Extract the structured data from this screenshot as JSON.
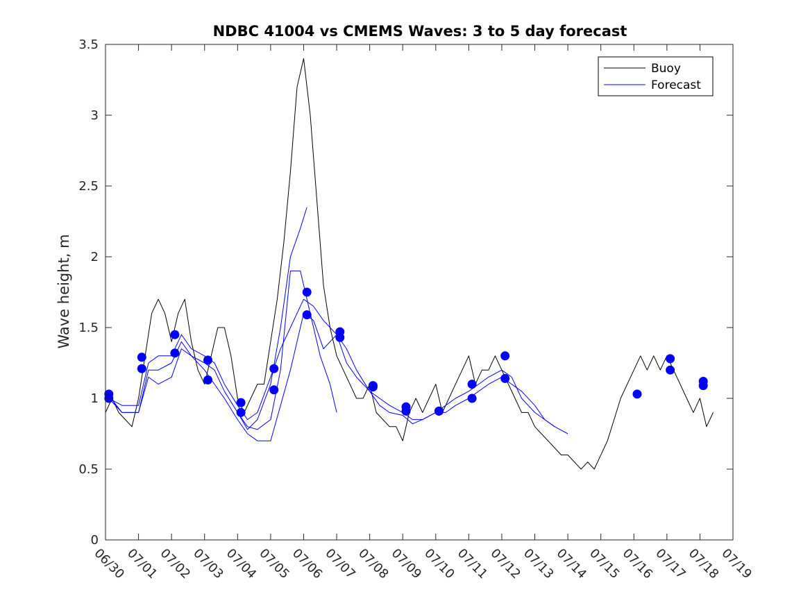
{
  "chart_data": {
    "type": "line",
    "title": "NDBC 41004 vs CMEMS Waves: 3 to 5 day forecast",
    "ylabel": "Wave height, m",
    "xlabel": "",
    "ylim": [
      0,
      3.5
    ],
    "xlim_days": [
      0,
      19
    ],
    "yticks": [
      "0",
      "0.5",
      "1",
      "1.5",
      "2",
      "2.5",
      "3",
      "3.5"
    ],
    "xticks": [
      "06/30",
      "07/01",
      "07/02",
      "07/03",
      "07/04",
      "07/05",
      "07/06",
      "07/07",
      "07/08",
      "07/09",
      "07/10",
      "07/11",
      "07/12",
      "07/13",
      "07/14",
      "07/15",
      "07/16",
      "07/17",
      "07/18",
      "07/19"
    ],
    "legend": {
      "placement": "top-right",
      "entries": [
        {
          "label": "Buoy",
          "color": "#000000"
        },
        {
          "label": "Forecast",
          "color": "#0000ff"
        }
      ]
    },
    "series": [
      {
        "name": "Buoy",
        "color": "#000000",
        "x": [
          0,
          0.2,
          0.4,
          0.6,
          0.8,
          1.0,
          1.2,
          1.4,
          1.6,
          1.8,
          2.0,
          2.2,
          2.4,
          2.6,
          2.8,
          3.0,
          3.2,
          3.4,
          3.6,
          3.8,
          4.0,
          4.2,
          4.4,
          4.6,
          4.8,
          5.0,
          5.2,
          5.4,
          5.6,
          5.8,
          6.0,
          6.2,
          6.4,
          6.6,
          6.8,
          7.0,
          7.2,
          7.4,
          7.6,
          7.8,
          8.0,
          8.2,
          8.4,
          8.6,
          8.8,
          9.0,
          9.2,
          9.4,
          9.6,
          9.8,
          10.0,
          10.2,
          10.4,
          10.6,
          10.8,
          11.0,
          11.2,
          11.4,
          11.6,
          11.8,
          12.0,
          12.2,
          12.4,
          12.6,
          12.8,
          13.0,
          13.2,
          13.4,
          13.6,
          13.8,
          14.0,
          14.2,
          14.4,
          14.6,
          14.8,
          15.0,
          15.2,
          15.4,
          15.6,
          15.8,
          16.0,
          16.2,
          16.4,
          16.6,
          16.8,
          17.0,
          17.2,
          17.4,
          17.6,
          17.8,
          18.0,
          18.2,
          18.4
        ],
        "y": [
          0.9,
          1.0,
          0.9,
          0.85,
          0.8,
          1.0,
          1.3,
          1.6,
          1.7,
          1.6,
          1.4,
          1.6,
          1.7,
          1.4,
          1.2,
          1.1,
          1.3,
          1.5,
          1.5,
          1.3,
          1.0,
          0.9,
          1.0,
          1.1,
          1.1,
          1.4,
          1.7,
          2.1,
          2.6,
          3.2,
          3.4,
          3.0,
          2.4,
          1.8,
          1.5,
          1.3,
          1.2,
          1.1,
          1.0,
          1.0,
          1.1,
          0.9,
          0.85,
          0.8,
          0.8,
          0.7,
          0.9,
          1.0,
          0.9,
          1.0,
          1.1,
          0.9,
          1.0,
          1.1,
          1.2,
          1.3,
          1.1,
          1.2,
          1.2,
          1.3,
          1.2,
          1.1,
          1.0,
          0.9,
          0.9,
          0.8,
          0.75,
          0.7,
          0.65,
          0.6,
          0.6,
          0.55,
          0.5,
          0.55,
          0.5,
          0.6,
          0.7,
          0.85,
          1.0,
          1.1,
          1.2,
          1.3,
          1.2,
          1.3,
          1.2,
          1.3,
          1.2,
          1.1,
          1.0,
          0.9,
          1.0,
          0.8,
          0.9
        ]
      },
      {
        "name": "Forecast",
        "color": "#0000ff",
        "x": [
          0.1,
          0.5,
          1.0,
          1.3,
          1.6,
          2.0,
          2.3,
          2.6,
          3.0,
          3.3,
          3.6,
          4.0,
          4.3,
          4.6,
          5.0,
          5.3,
          5.6,
          6.0,
          6.3,
          6.6,
          7.0,
          7.3,
          7.6,
          8.0,
          8.3,
          8.6,
          9.0,
          9.3,
          9.6,
          10.0,
          10.3,
          10.6,
          11.0,
          11.3,
          11.6,
          12.0,
          12.3,
          12.6,
          13.0,
          13.3,
          13.6,
          14.0
        ],
        "y": [
          1.0,
          0.95,
          0.95,
          1.25,
          1.3,
          1.3,
          1.45,
          1.35,
          1.3,
          1.25,
          1.1,
          0.95,
          0.85,
          0.9,
          1.15,
          1.35,
          1.5,
          1.7,
          1.65,
          1.55,
          1.45,
          1.35,
          1.2,
          1.05,
          1.0,
          0.95,
          0.9,
          0.85,
          0.85,
          0.9,
          0.95,
          1.0,
          1.05,
          1.1,
          1.15,
          1.2,
          1.15,
          1.0,
          0.9,
          0.85,
          0.8,
          0.75
        ]
      },
      {
        "name": "",
        "color": "#0000ff",
        "x": [
          0.1,
          0.5,
          1.0,
          1.3,
          1.6,
          2.0,
          2.3,
          2.6,
          3.0,
          3.3,
          3.6,
          4.0,
          4.3,
          4.6,
          5.0,
          5.3,
          5.6,
          6.0,
          6.3,
          6.6,
          7.0,
          7.3,
          7.6,
          8.0,
          8.3,
          8.6,
          9.0,
          9.3,
          9.6,
          10.0,
          10.3,
          10.6,
          11.0,
          11.3,
          11.6,
          12.0,
          12.3,
          12.6,
          13.0,
          13.3,
          13.6
        ],
        "y": [
          1.02,
          0.9,
          0.9,
          1.15,
          1.1,
          1.15,
          1.35,
          1.3,
          1.2,
          1.1,
          1.0,
          0.85,
          0.75,
          0.7,
          0.7,
          0.95,
          1.2,
          1.6,
          1.55,
          1.35,
          1.45,
          1.25,
          1.15,
          1.05,
          0.95,
          0.9,
          0.88,
          0.82,
          0.85,
          0.9,
          0.9,
          0.95,
          1.0,
          1.05,
          1.1,
          1.15,
          1.1,
          1.05,
          0.95,
          0.85,
          0.8
        ]
      },
      {
        "name": "",
        "color": "#0000ff",
        "x": [
          0.1,
          0.5,
          1.0,
          1.3,
          1.6,
          2.0,
          2.3,
          2.6,
          3.0,
          3.3,
          3.6,
          4.0,
          4.3,
          4.6,
          5.0,
          5.3,
          5.6,
          5.9,
          6.2,
          6.5,
          6.8,
          7.0
        ],
        "y": [
          1.0,
          0.9,
          0.9,
          1.2,
          1.2,
          1.25,
          1.4,
          1.3,
          1.25,
          1.2,
          1.05,
          0.9,
          0.8,
          0.78,
          0.85,
          1.2,
          1.9,
          1.9,
          1.6,
          1.3,
          1.1,
          0.9
        ]
      },
      {
        "name": "",
        "color": "#0000ff",
        "x": [
          4.0,
          4.3,
          4.6,
          5.0,
          5.3,
          5.6,
          5.9,
          6.1
        ],
        "y": [
          0.9,
          0.78,
          0.85,
          1.1,
          1.5,
          2.0,
          2.2,
          2.35
        ]
      }
    ],
    "markers": {
      "name": "",
      "color": "#0000ff",
      "x": [
        0.1,
        0.1,
        1.1,
        1.1,
        2.1,
        2.1,
        3.1,
        3.1,
        4.1,
        4.1,
        5.1,
        5.1,
        6.1,
        6.1,
        7.1,
        7.1,
        8.1,
        8.1,
        9.1,
        9.1,
        10.1,
        10.1,
        11.1,
        11.1,
        12.1,
        12.1,
        16.1,
        17.1,
        17.1,
        18.1,
        18.1
      ],
      "y": [
        1.03,
        1.0,
        1.29,
        1.21,
        1.45,
        1.32,
        1.27,
        1.13,
        0.97,
        0.9,
        1.21,
        1.06,
        1.75,
        1.59,
        1.47,
        1.43,
        1.09,
        1.08,
        0.94,
        0.91,
        0.91,
        0.91,
        1.1,
        1.0,
        1.3,
        1.14,
        1.03,
        1.28,
        1.2,
        1.12,
        1.09
      ]
    }
  }
}
